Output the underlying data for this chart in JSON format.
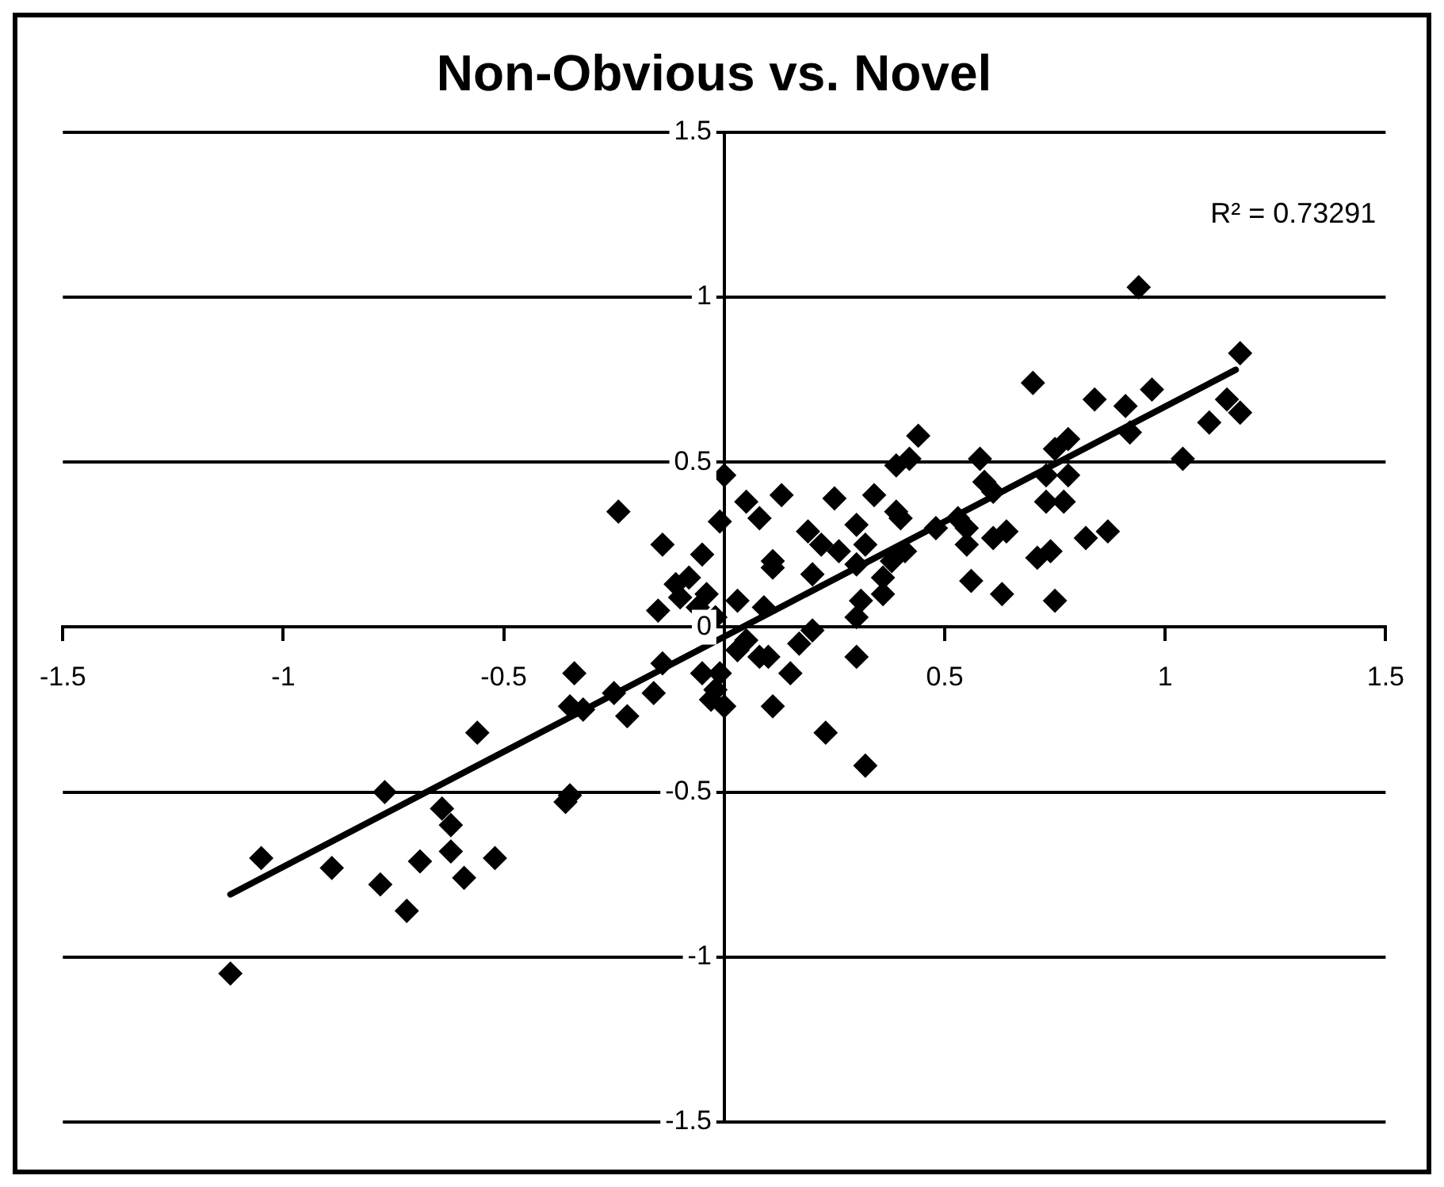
{
  "chart_data": {
    "type": "scatter",
    "title": "Non-Obvious vs. Novel",
    "annotations": [
      "R² = 0.73291"
    ],
    "xlim": [
      -1.5,
      1.5
    ],
    "xticks": [
      -1.5,
      -1,
      -0.5,
      {
        "value": 0,
        "label": null
      },
      0.5,
      1,
      1.5
    ],
    "ylim": [
      -1.5,
      1.5
    ],
    "yticks": [
      -1.5,
      -1,
      -0.5,
      0,
      0.5,
      1,
      1.5
    ],
    "grid": "y",
    "legend": false,
    "marker": "diamond",
    "series": [
      {
        "type": "scatter",
        "color": "#000000",
        "x": [
          -1.12,
          -1.05,
          -0.89,
          -0.78,
          -0.72,
          -0.77,
          -0.69,
          -0.64,
          -0.62,
          -0.62,
          -0.59,
          -0.52,
          -0.56,
          -0.36,
          -0.35,
          -0.34,
          -0.35,
          -0.32,
          -0.25,
          -0.22,
          -0.16,
          -0.14,
          -0.24,
          -0.14,
          -0.15,
          -0.11,
          0.0,
          -0.01,
          -0.05,
          -0.08,
          -0.1,
          -0.04,
          -0.06,
          -0.02,
          0.03,
          0.05,
          0.08,
          0.13,
          0.11,
          0.11,
          0.09,
          0.19,
          0.25,
          0.22,
          0.2,
          0.26,
          0.34,
          0.3,
          0.32,
          0.3,
          0.36,
          0.31,
          0.3,
          0.39,
          0.39,
          0.05,
          0.08,
          0.03,
          -0.01,
          -0.05,
          -0.02,
          0.0,
          -0.03,
          0.1,
          0.17,
          0.2,
          0.15,
          0.11,
          0.3,
          0.23,
          0.32,
          0.94,
          1.17,
          1.17,
          1.14,
          1.1,
          1.04,
          0.7,
          0.84,
          0.91,
          0.97,
          0.92,
          0.75,
          0.78,
          0.73,
          0.78,
          0.73,
          0.77,
          0.58,
          0.44,
          0.42,
          0.59,
          0.61,
          0.53,
          0.55,
          0.48,
          0.4,
          0.64,
          0.61,
          0.82,
          0.87,
          0.55,
          0.71,
          0.74,
          0.56,
          0.63,
          0.75,
          0.41,
          0.36,
          0.38
        ],
        "values": [
          -1.05,
          -0.7,
          -0.73,
          -0.78,
          -0.86,
          -0.5,
          -0.71,
          -0.55,
          -0.6,
          -0.68,
          -0.76,
          -0.7,
          -0.32,
          -0.53,
          -0.51,
          -0.14,
          -0.24,
          -0.25,
          -0.2,
          -0.27,
          -0.2,
          -0.11,
          0.35,
          0.25,
          0.05,
          0.13,
          0.46,
          0.32,
          0.22,
          0.15,
          0.09,
          0.1,
          0.06,
          0.03,
          0.08,
          0.38,
          0.33,
          0.4,
          0.2,
          0.18,
          0.06,
          0.29,
          0.39,
          0.25,
          0.16,
          0.23,
          0.4,
          0.31,
          0.25,
          0.19,
          0.15,
          0.08,
          0.03,
          0.49,
          0.35,
          -0.04,
          -0.09,
          -0.07,
          -0.14,
          -0.14,
          -0.19,
          -0.24,
          -0.22,
          -0.09,
          -0.05,
          -0.01,
          -0.14,
          -0.24,
          -0.09,
          -0.32,
          -0.42,
          1.03,
          0.83,
          0.65,
          0.69,
          0.62,
          0.51,
          0.74,
          0.69,
          0.67,
          0.72,
          0.59,
          0.54,
          0.57,
          0.46,
          0.46,
          0.38,
          0.38,
          0.51,
          0.58,
          0.51,
          0.44,
          0.41,
          0.33,
          0.3,
          0.3,
          0.33,
          0.29,
          0.27,
          0.27,
          0.29,
          0.25,
          0.21,
          0.23,
          0.14,
          0.1,
          0.08,
          0.23,
          0.1,
          0.2
        ]
      },
      {
        "type": "line",
        "color": "#000000",
        "marker": "none",
        "x": [
          -1.12,
          1.16
        ],
        "values": [
          -0.81,
          0.78
        ]
      }
    ]
  }
}
